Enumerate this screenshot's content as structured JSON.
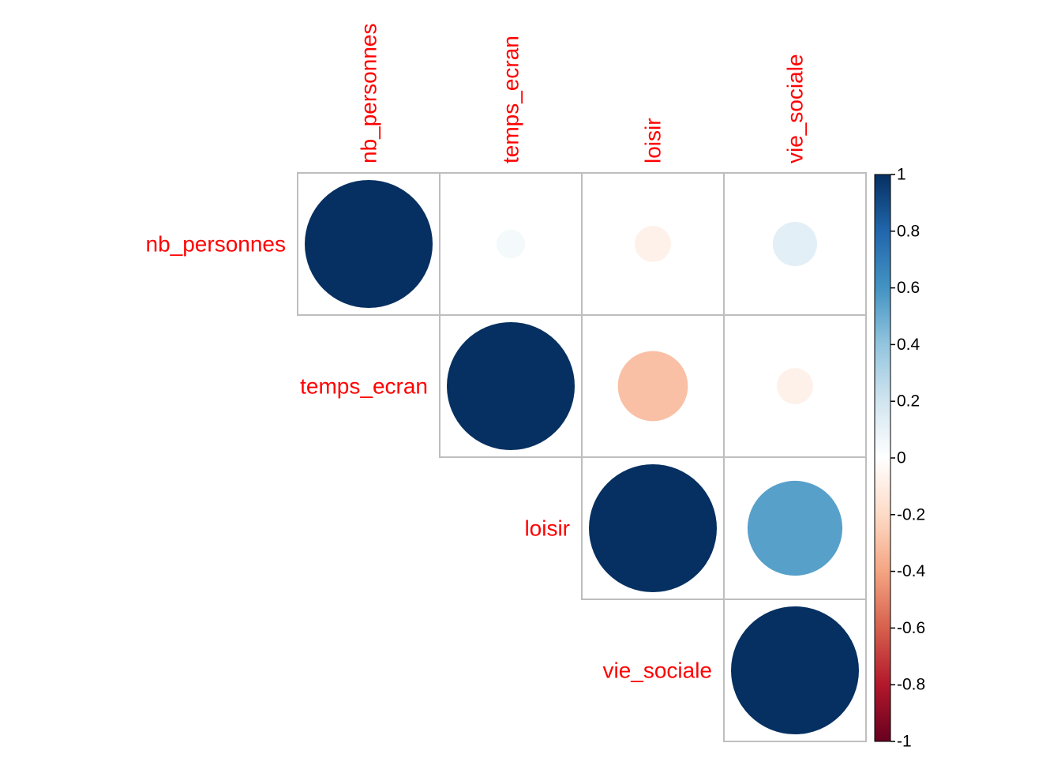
{
  "chart_data": {
    "type": "heatmap",
    "title": "",
    "variables": [
      "nb_personnes",
      "temps_ecran",
      "loisir",
      "vie_sociale"
    ],
    "matrix_style": "upper-triangle",
    "glyph": "circle",
    "correlations": [
      [
        1.0,
        0.05,
        -0.08,
        0.12
      ],
      [
        0.05,
        1.0,
        -0.3,
        -0.08
      ],
      [
        -0.08,
        -0.3,
        1.0,
        0.55
      ],
      [
        0.12,
        -0.08,
        0.55,
        1.0
      ]
    ],
    "colorbar": {
      "range": [
        -1,
        1
      ],
      "ticks": [
        "1",
        "0.8",
        "0.6",
        "0.4",
        "0.2",
        "0",
        "-0.2",
        "-0.4",
        "-0.6",
        "-0.8",
        "-1"
      ]
    },
    "colors": {
      "label": "#ff0000",
      "grid": "#bebebe",
      "scale": [
        "#67001F",
        "#B2182B",
        "#D6604D",
        "#F4A582",
        "#FDDBC7",
        "#FFFFFF",
        "#D1E5F0",
        "#92C5DE",
        "#4393C3",
        "#2166AC",
        "#053061"
      ]
    }
  }
}
